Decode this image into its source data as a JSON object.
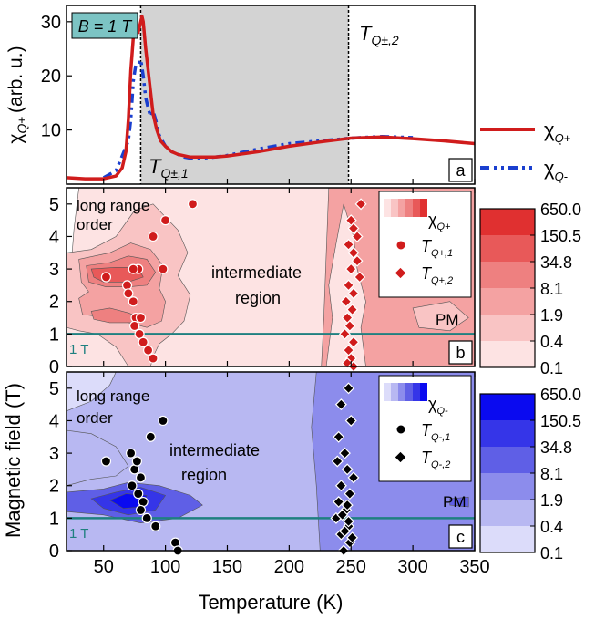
{
  "chart_data": [
    {
      "type": "line",
      "panel_label": "a",
      "ylabel": "χ",
      "ylabel_sub": "Q±",
      "ylabel_unit": "(arb. u.)",
      "ylim": [
        0,
        33
      ],
      "xlim": [
        20,
        350
      ],
      "yticks": [
        10,
        20,
        30
      ],
      "field_box": "B = 1 T",
      "shaded_range": [
        80,
        248
      ],
      "vlines": [
        {
          "x": 80,
          "label": "T",
          "sub": "Q±,1"
        },
        {
          "x": 248,
          "label": "T",
          "sub": "Q±,2"
        }
      ],
      "series": [
        {
          "name": "χQ+",
          "name_main": "χ",
          "name_sub": "Q+",
          "color": "#d01c1c",
          "style": "solid",
          "x": [
            20,
            35,
            50,
            60,
            65,
            68,
            70,
            72,
            74,
            76,
            78,
            80,
            81,
            82,
            84,
            86,
            88,
            90,
            93,
            96,
            100,
            105,
            110,
            120,
            130,
            140,
            150,
            175,
            200,
            225,
            250,
            275,
            300,
            325,
            350
          ],
          "y": [
            1.2,
            1.0,
            1.0,
            1.5,
            3,
            6,
            12,
            21,
            27,
            28,
            28,
            30,
            31,
            30,
            25,
            21,
            17,
            13,
            10,
            8,
            7,
            6,
            5.5,
            5,
            5,
            5,
            5.2,
            6,
            7,
            7.8,
            8.5,
            8.7,
            8.4,
            8.0,
            7.5
          ]
        },
        {
          "name": "χQ-",
          "name_main": "χ",
          "name_sub": "Q-",
          "color": "#1a3fcf",
          "style": "dashdot",
          "x": [
            50,
            60,
            65,
            70,
            72,
            74,
            76,
            78,
            80,
            82,
            84,
            86,
            88,
            90,
            92,
            95,
            100,
            105,
            110,
            115,
            120,
            130,
            140,
            150,
            175,
            200,
            225,
            250,
            275,
            300
          ],
          "y": [
            1.2,
            2.5,
            5.2,
            8,
            12,
            19,
            22,
            22,
            23,
            20,
            16,
            14,
            12.5,
            13.5,
            12,
            9,
            7,
            6,
            5.5,
            5,
            4.8,
            4.8,
            5,
            5.3,
            6.5,
            7.5,
            8,
            8.5,
            8.8,
            8.6
          ]
        }
      ]
    },
    {
      "type": "heatmap",
      "panel_label": "b",
      "title": "intermediate region",
      "region_labels": [
        "long range",
        "order",
        "intermediate",
        "region",
        "PM",
        "1 T"
      ],
      "xlim": [
        20,
        350
      ],
      "ylim": [
        0,
        5.5
      ],
      "yticks": [
        0,
        1,
        2,
        3,
        4,
        5
      ],
      "colorbar_ticks": [
        "650.0",
        "150.5",
        "34.8",
        "8.1",
        "1.9",
        "0.4",
        "0.1"
      ],
      "colors": [
        "#ffffff",
        "#fde3e3",
        "#f9c4c4",
        "#f4a2a2",
        "#ee8080",
        "#e85959",
        "#e03030"
      ],
      "legend": {
        "map_label": "χ",
        "map_sub": "Q+",
        "t1": "T",
        "t1_sub": "Q+,1",
        "t2": "T",
        "t2_sub": "Q+,2"
      },
      "hline": 1,
      "T1": {
        "x": [
          122,
          100,
          90,
          98,
          78,
          74,
          52,
          69,
          70,
          74,
          76,
          80,
          75,
          79,
          82,
          86,
          90
        ],
        "y": [
          5.0,
          4.5,
          4.0,
          3.0,
          3.0,
          3.0,
          2.75,
          2.5,
          2.25,
          2.0,
          1.5,
          1.5,
          1.25,
          1.0,
          0.75,
          0.5,
          0.25
        ]
      },
      "T2": {
        "x": [
          258,
          250,
          252,
          255,
          248,
          252,
          255,
          250,
          257,
          248,
          252,
          246,
          251,
          247,
          249,
          245,
          252,
          248,
          250,
          247,
          252
        ],
        "y": [
          5.0,
          4.5,
          4.25,
          4.0,
          3.75,
          3.5,
          3.25,
          3.0,
          2.75,
          2.5,
          2.25,
          2.0,
          1.75,
          1.5,
          1.25,
          1.0,
          0.75,
          0.5,
          0.25,
          0.1,
          0.0
        ]
      }
    },
    {
      "type": "heatmap",
      "panel_label": "c",
      "title": "intermediate region",
      "region_labels": [
        "long range",
        "order",
        "intermediate",
        "region",
        "PM",
        "1 T"
      ],
      "xlim": [
        20,
        350
      ],
      "ylim": [
        0,
        5.5
      ],
      "yticks": [
        0,
        1,
        2,
        3,
        4,
        5
      ],
      "xlabel": "Temperature (K)",
      "xticks": [
        50,
        100,
        150,
        200,
        250,
        300,
        350
      ],
      "colorbar_ticks": [
        "650.0",
        "150.5",
        "34.8",
        "8.1",
        "1.9",
        "0.4",
        "0.1"
      ],
      "colors": [
        "#ffffff",
        "#dcdcfa",
        "#b8b8f2",
        "#8c8cec",
        "#5f5fe6",
        "#3535e8",
        "#0a0af0"
      ],
      "legend": {
        "map_label": "χ",
        "map_sub": "Q-",
        "t1": "T",
        "t1_sub": "Q-,1",
        "t2": "T",
        "t2_sub": "Q-,2"
      },
      "hline": 1,
      "T1": {
        "x": [
          98,
          88,
          72,
          52,
          75,
          80,
          73,
          78,
          82,
          80,
          85,
          92,
          108,
          110
        ],
        "y": [
          4.0,
          3.5,
          3.0,
          2.75,
          2.5,
          2.25,
          2.0,
          1.75,
          1.5,
          1.25,
          1.0,
          0.75,
          0.25,
          0.0
        ],
        "extra_x": [
          77
        ],
        "extra_y": [
          2.75
        ]
      },
      "T2": {
        "x": [
          248,
          242,
          250,
          240,
          245,
          239,
          247,
          252,
          242,
          249,
          240,
          246,
          238,
          248,
          242,
          249,
          244,
          251,
          245,
          248,
          243,
          247
        ],
        "y": [
          5.0,
          4.5,
          4.0,
          3.5,
          3.0,
          2.75,
          2.5,
          2.25,
          2.0,
          1.75,
          1.5,
          1.25,
          1.0,
          0.75,
          0.5,
          0.25,
          0.0,
          0.4,
          0.6,
          0.9,
          1.1,
          1.4
        ]
      }
    }
  ],
  "shared_ylabel": "Magnetic field (T)"
}
